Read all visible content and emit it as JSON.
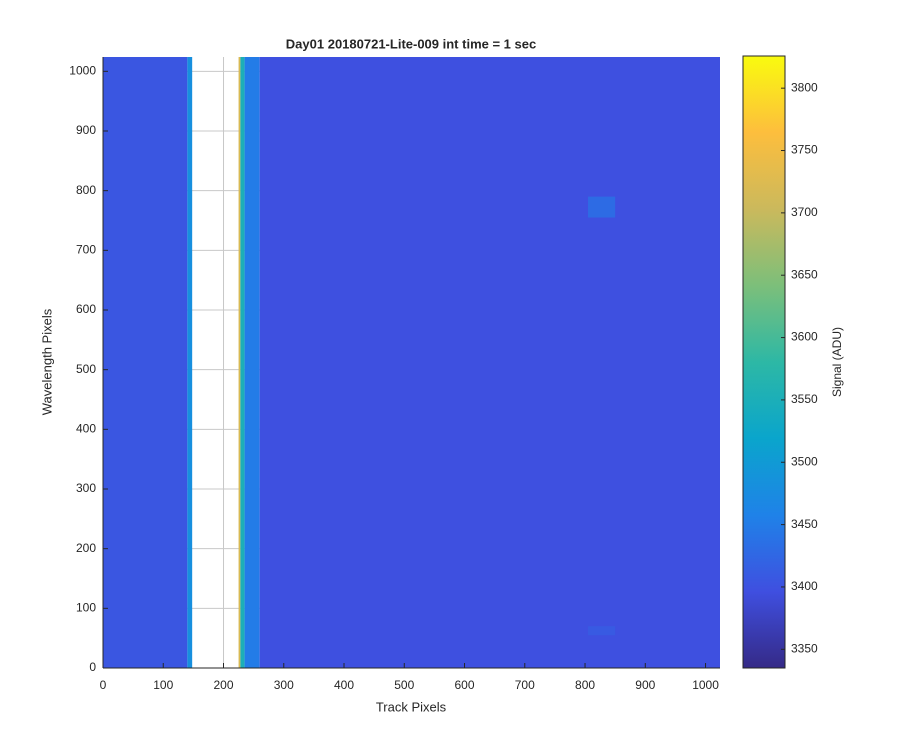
{
  "chart_data": {
    "type": "heatmap",
    "title": "Day01 20180721-Lite-009 int time = 1 sec",
    "xlabel": "Track Pixels",
    "ylabel": "Wavelength Pixels",
    "colorbar_label": "Signal (ADU)",
    "xlim": [
      0,
      1024
    ],
    "ylim": [
      0,
      1024
    ],
    "xticks": [
      0,
      100,
      200,
      300,
      400,
      500,
      600,
      700,
      800,
      900,
      1000
    ],
    "yticks": [
      0,
      100,
      200,
      300,
      400,
      500,
      600,
      700,
      800,
      900,
      1000
    ],
    "clim": [
      3335,
      3825
    ],
    "cticks": [
      3350,
      3400,
      3450,
      3500,
      3550,
      3600,
      3650,
      3700,
      3750,
      3800
    ],
    "grid": true,
    "colormap": [
      "#352a87",
      "#3f4fe0",
      "#1f82e8",
      "#0aa5cc",
      "#2db8a5",
      "#7cbf7a",
      "#cbb95c",
      "#fdbe3d",
      "#f9fb0e"
    ],
    "cells": [
      {
        "x": [
          0,
          140
        ],
        "y": [
          0,
          1024
        ],
        "value": 3405
      },
      {
        "x": [
          140,
          148
        ],
        "y": [
          0,
          1024
        ],
        "value": 3480
      },
      {
        "x": [
          225,
          228
        ],
        "y": [
          0,
          1024
        ],
        "value": 3720
      },
      {
        "x": [
          228,
          235
        ],
        "y": [
          0,
          1024
        ],
        "value": 3550
      },
      {
        "x": [
          235,
          260
        ],
        "y": [
          0,
          1024
        ],
        "value": 3450
      },
      {
        "x": [
          260,
          1024
        ],
        "y": [
          0,
          1024
        ],
        "value": 3398
      },
      {
        "x": [
          805,
          850
        ],
        "y": [
          755,
          790
        ],
        "value": 3430
      },
      {
        "x": [
          805,
          850
        ],
        "y": [
          55,
          70
        ],
        "value": 3410
      }
    ]
  }
}
